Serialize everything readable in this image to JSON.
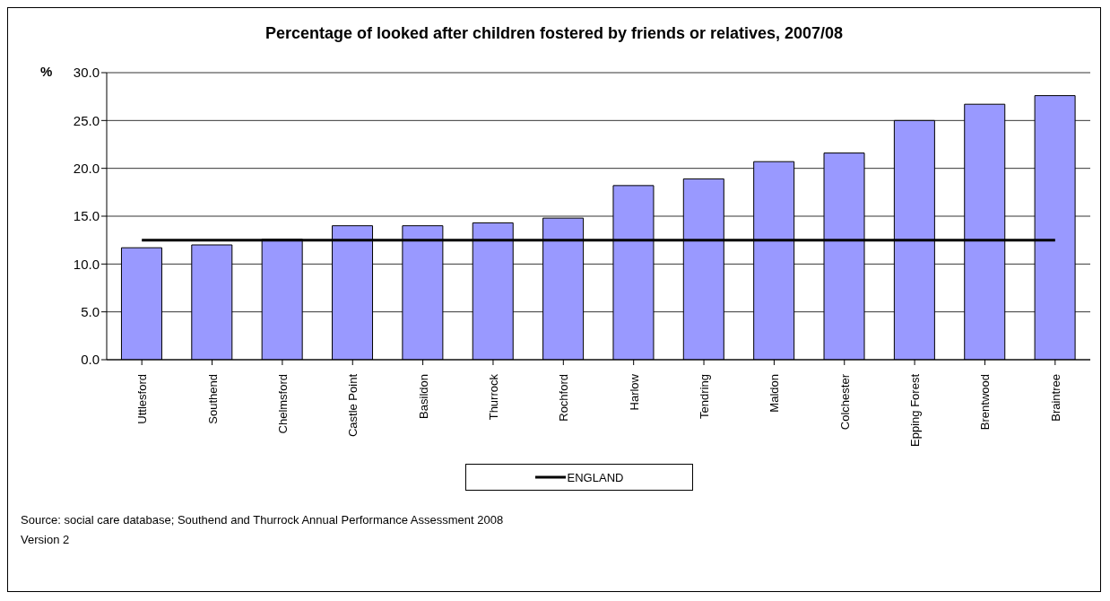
{
  "chart_data": {
    "type": "bar",
    "title": "Percentage of looked after children fostered by friends or relatives, 2007/08",
    "ylabel": "%",
    "categories": [
      "Uttlesford",
      "Southend",
      "Chelmsford",
      "Castle Point",
      "Basildon",
      "Thurrock",
      "Rochford",
      "Harlow",
      "Tendring",
      "Maldon",
      "Colchester",
      "Epping Forest",
      "Brentwood",
      "Braintree"
    ],
    "series": [
      {
        "color": "#9999ff",
        "values": [
          11.7,
          12.0,
          12.6,
          14.0,
          14.0,
          14.3,
          14.8,
          18.2,
          18.9,
          20.7,
          21.6,
          25.0,
          26.7,
          27.6
        ]
      },
      {
        "type": "line",
        "name": "ENGLAND",
        "color": "#000000",
        "values": [
          12.5,
          12.5,
          12.5,
          12.5,
          12.5,
          12.5,
          12.5,
          12.5,
          12.5,
          12.5,
          12.5,
          12.5,
          12.5,
          12.5
        ]
      }
    ],
    "ylim": [
      0,
      30
    ],
    "yticks": [
      {
        "value": 0,
        "label": "0.0"
      },
      {
        "value": 5,
        "label": "5.0"
      },
      {
        "value": 10,
        "label": "10.0"
      },
      {
        "value": 15,
        "label": "15.0"
      },
      {
        "value": 20,
        "label": "20.0"
      },
      {
        "value": 25,
        "label": "25.0"
      },
      {
        "value": 30,
        "label": "30.0"
      }
    ],
    "grid": "y",
    "legend": "bottom",
    "annotations": [
      "Source: social care database; Southend and Thurrock Annual Performance Assessment 2008 Version 2"
    ]
  }
}
